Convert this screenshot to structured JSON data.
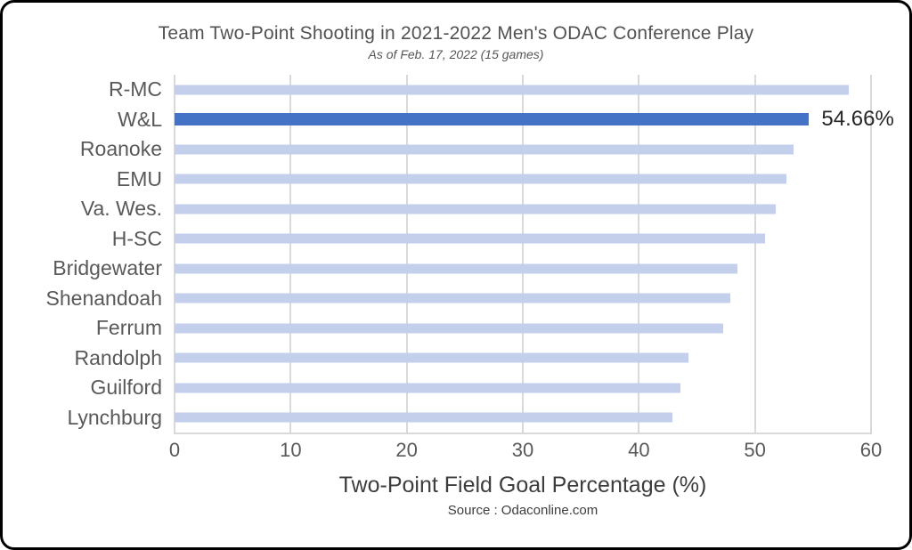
{
  "chart_data": {
    "type": "bar",
    "orientation": "horizontal",
    "title": "Team Two-Point Shooting in 2021-2022 Men's ODAC Conference Play",
    "subtitle": "As of Feb. 17, 2022 (15 games)",
    "xlabel": "Two-Point Field Goal Percentage (%)",
    "source": "Source : Odaconline.com",
    "categories": [
      "R-MC",
      "W&L",
      "Roanoke",
      "EMU",
      "Va. Wes.",
      "H-SC",
      "Bridgewater",
      "Shenandoah",
      "Ferrum",
      "Randolph",
      "Guilford",
      "Lynchburg"
    ],
    "values": [
      58.1,
      54.66,
      53.3,
      52.7,
      51.8,
      50.9,
      48.5,
      47.9,
      47.3,
      44.3,
      43.6,
      42.9
    ],
    "xlim": [
      0,
      60
    ],
    "xticks": [
      0,
      10,
      20,
      30,
      40,
      50,
      60
    ],
    "grid": "vertical",
    "legend": "none",
    "highlight": {
      "index": 1,
      "label": "54.66%"
    },
    "colors": {
      "bar": "#c3cfeb",
      "highlight_bar": "#4472c4",
      "gridline": "#d9d9d9",
      "category_text": "#595959",
      "tick_text": "#595959",
      "annotation_text": "#262626"
    }
  }
}
